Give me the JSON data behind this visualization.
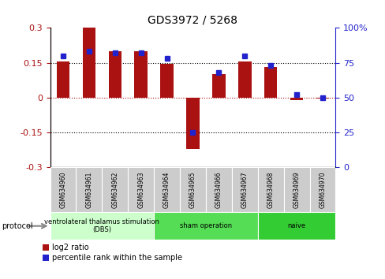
{
  "title": "GDS3972 / 5268",
  "samples": [
    "GSM634960",
    "GSM634961",
    "GSM634962",
    "GSM634963",
    "GSM634964",
    "GSM634965",
    "GSM634966",
    "GSM634967",
    "GSM634968",
    "GSM634969",
    "GSM634970"
  ],
  "log2_ratio": [
    0.155,
    0.3,
    0.2,
    0.2,
    0.145,
    -0.22,
    0.1,
    0.155,
    0.132,
    -0.01,
    -0.005
  ],
  "percentile_rank": [
    80,
    83,
    82,
    82,
    78,
    25,
    68,
    80,
    73,
    52,
    50
  ],
  "bar_color": "#aa1111",
  "dot_color": "#2222cc",
  "ylim_left": [
    -0.3,
    0.3
  ],
  "ylim_right": [
    0,
    100
  ],
  "yticks_left": [
    -0.3,
    -0.15,
    0,
    0.15,
    0.3
  ],
  "yticks_right": [
    0,
    25,
    50,
    75,
    100
  ],
  "groups": [
    {
      "label": "ventrolateral thalamus stimulation\n(DBS)",
      "start": 0,
      "end": 3,
      "color": "#ccffcc"
    },
    {
      "label": "sham operation",
      "start": 4,
      "end": 7,
      "color": "#55dd55"
    },
    {
      "label": "naive",
      "start": 8,
      "end": 10,
      "color": "#33cc33"
    }
  ],
  "legend_red_label": "log2 ratio",
  "legend_blue_label": "percentile rank within the sample",
  "protocol_label": "protocol"
}
